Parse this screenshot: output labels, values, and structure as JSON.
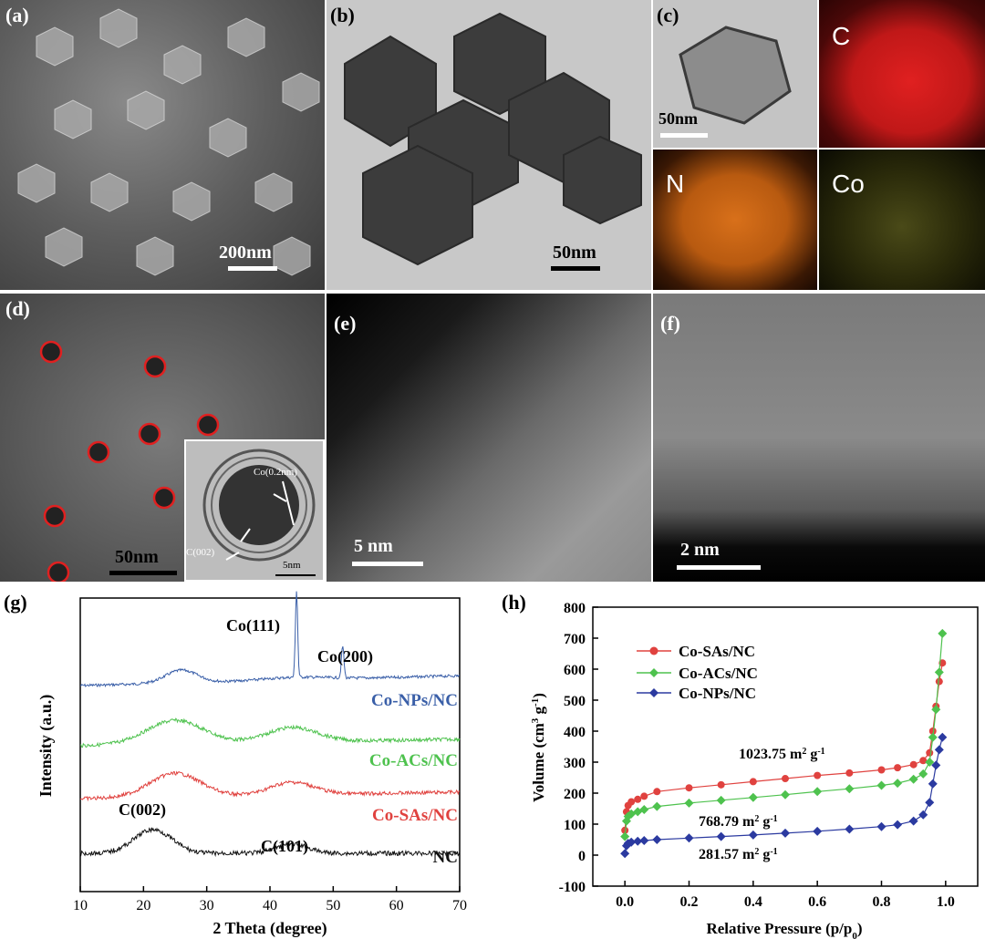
{
  "panels": {
    "a": {
      "label": "(a)",
      "scalebar": "200nm"
    },
    "b": {
      "label": "(b)",
      "scalebar": "50nm"
    },
    "c": {
      "label": "(c)",
      "scalebar": "50nm",
      "maps": [
        "C",
        "N",
        "Co"
      ]
    },
    "d": {
      "label": "(d)",
      "scalebar": "50nm",
      "inset_scalebar": "5nm",
      "inset_labels": [
        "Co(0.2nm)",
        "C(002)"
      ]
    },
    "e": {
      "label": "(e)",
      "scalebar": "5 nm"
    },
    "f": {
      "label": "(f)",
      "scalebar": "2 nm"
    }
  },
  "colors": {
    "blue": "#3a5fa8",
    "green": "#4ec24e",
    "red": "#e0423f",
    "black": "#111111",
    "navy": "#2b3aa0"
  },
  "chart_data": [
    {
      "panel": "(g)",
      "type": "line",
      "xlabel": "2 Theta (degree)",
      "ylabel": "Intensity (a.u.)",
      "xlim": [
        10,
        70
      ],
      "xticks": [
        "10",
        "20",
        "30",
        "40",
        "50",
        "60",
        "70"
      ],
      "series": [
        {
          "name": "Co-NPs/NC",
          "color": "#3a5fa8"
        },
        {
          "name": "Co-ACs/NC",
          "color": "#4ec24e"
        },
        {
          "name": "Co-SAs/NC",
          "color": "#e0423f"
        },
        {
          "name": "NC",
          "color": "#111111"
        }
      ],
      "annotations": [
        "Co(111)",
        "Co(200)",
        "C(002)",
        "C(101)"
      ]
    },
    {
      "panel": "(h)",
      "type": "scatter",
      "xlabel": "Relative Pressure (p/p",
      "xlabel_sub": "0",
      "xlabel_end": ")",
      "ylabel": "Volume (cm",
      "ylabel_sup1": "3",
      "ylabel_mid": " g",
      "ylabel_sup2": "-1",
      "ylabel_end": ")",
      "xlim": [
        -0.1,
        1.1
      ],
      "ylim": [
        -100,
        800
      ],
      "xticks": [
        0.0,
        0.2,
        0.4,
        0.6,
        0.8,
        1.0
      ],
      "xtick_labels": [
        "0.0",
        "0.2",
        "0.4",
        "0.6",
        "0.8",
        "1.0"
      ],
      "yticks": [
        -100,
        0,
        100,
        200,
        300,
        400,
        500,
        600,
        700,
        800
      ],
      "ytick_labels": [
        "-100",
        "0",
        "100",
        "200",
        "300",
        "400",
        "500",
        "600",
        "700",
        "800"
      ],
      "legend_position": "upper-left",
      "series": [
        {
          "name": "Co-SAs/NC",
          "color": "#e0423f",
          "marker": "circle",
          "x": [
            0.0,
            0.005,
            0.01,
            0.02,
            0.04,
            0.06,
            0.1,
            0.2,
            0.3,
            0.4,
            0.5,
            0.6,
            0.7,
            0.8,
            0.85,
            0.9,
            0.93,
            0.95,
            0.96,
            0.97,
            0.98,
            0.99
          ],
          "y": [
            80,
            140,
            160,
            172,
            180,
            190,
            205,
            217,
            227,
            237,
            247,
            257,
            265,
            275,
            282,
            292,
            305,
            330,
            400,
            480,
            560,
            620
          ]
        },
        {
          "name": "Co-ACs/NC",
          "color": "#4ec24e",
          "marker": "diamond",
          "x": [
            0.0,
            0.005,
            0.01,
            0.02,
            0.04,
            0.06,
            0.1,
            0.2,
            0.3,
            0.4,
            0.5,
            0.6,
            0.7,
            0.8,
            0.85,
            0.9,
            0.93,
            0.95,
            0.96,
            0.97,
            0.98,
            0.99
          ],
          "y": [
            60,
            110,
            125,
            133,
            140,
            147,
            157,
            168,
            177,
            186,
            195,
            205,
            214,
            225,
            232,
            245,
            262,
            300,
            380,
            470,
            590,
            715
          ]
        },
        {
          "name": "Co-NPs/NC",
          "color": "#2b3aa0",
          "marker": "diamond",
          "x": [
            0.0,
            0.005,
            0.01,
            0.02,
            0.04,
            0.06,
            0.1,
            0.2,
            0.3,
            0.4,
            0.5,
            0.6,
            0.7,
            0.8,
            0.85,
            0.9,
            0.93,
            0.95,
            0.96,
            0.97,
            0.98,
            0.99
          ],
          "y": [
            5,
            30,
            38,
            42,
            45,
            47,
            50,
            55,
            60,
            65,
            71,
            77,
            84,
            92,
            98,
            110,
            130,
            170,
            230,
            290,
            340,
            380
          ]
        }
      ],
      "annotations": [
        {
          "text": "1023.75 m",
          "sup": "2",
          "tail": " g",
          "sup2": "-1"
        },
        {
          "text": "768.79 m",
          "sup": "2",
          "tail": " g",
          "sup2": "-1"
        },
        {
          "text": "281.57 m",
          "sup": "2",
          "tail": " g",
          "sup2": "-1"
        }
      ]
    }
  ]
}
